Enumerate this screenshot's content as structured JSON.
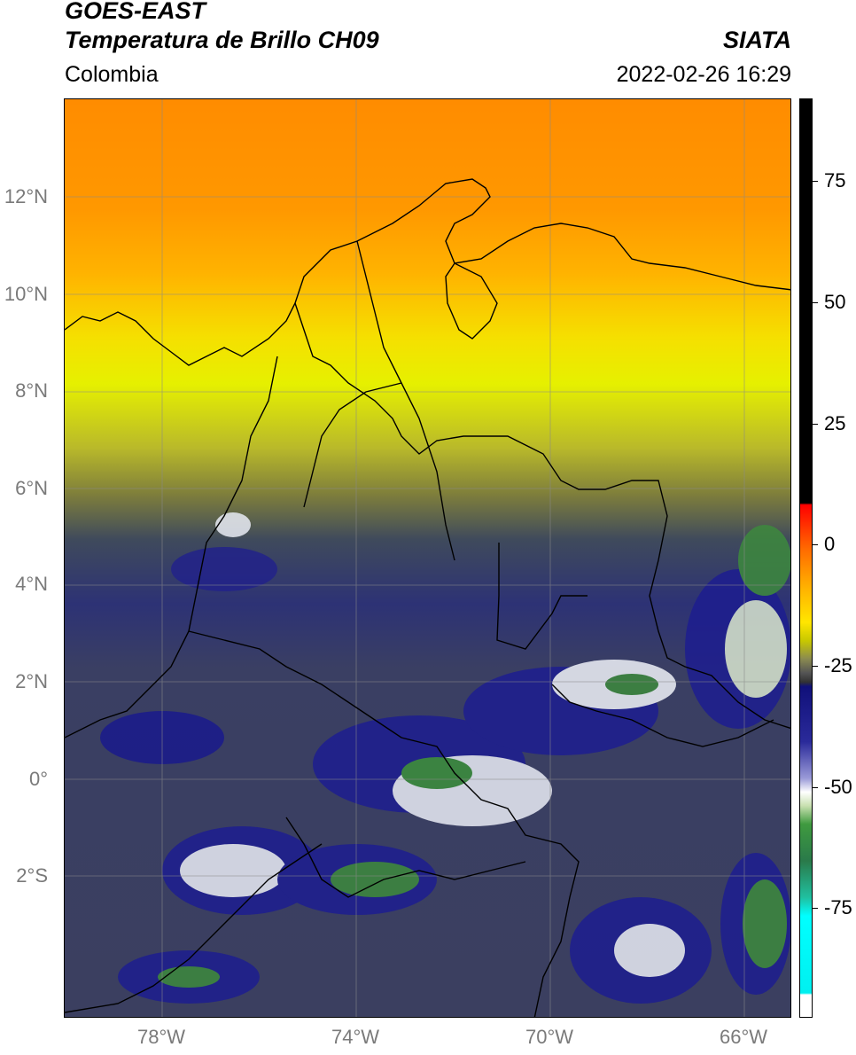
{
  "header": {
    "satellite": "GOES-EAST",
    "product": "Temperatura de Brillo CH09",
    "region": "Colombia",
    "organization": "SIATA",
    "timestamp": "2022-02-26 16:29"
  },
  "map": {
    "lat_labels": [
      "12°N",
      "10°N",
      "8°N",
      "6°N",
      "4°N",
      "2°N",
      "0°",
      "2°S"
    ],
    "lon_labels": [
      "78°W",
      "74°W",
      "70°W",
      "66°W"
    ],
    "colorbar_ticks": [
      "75",
      "50",
      "25",
      "0",
      "-25",
      "-50",
      "-75"
    ]
  }
}
